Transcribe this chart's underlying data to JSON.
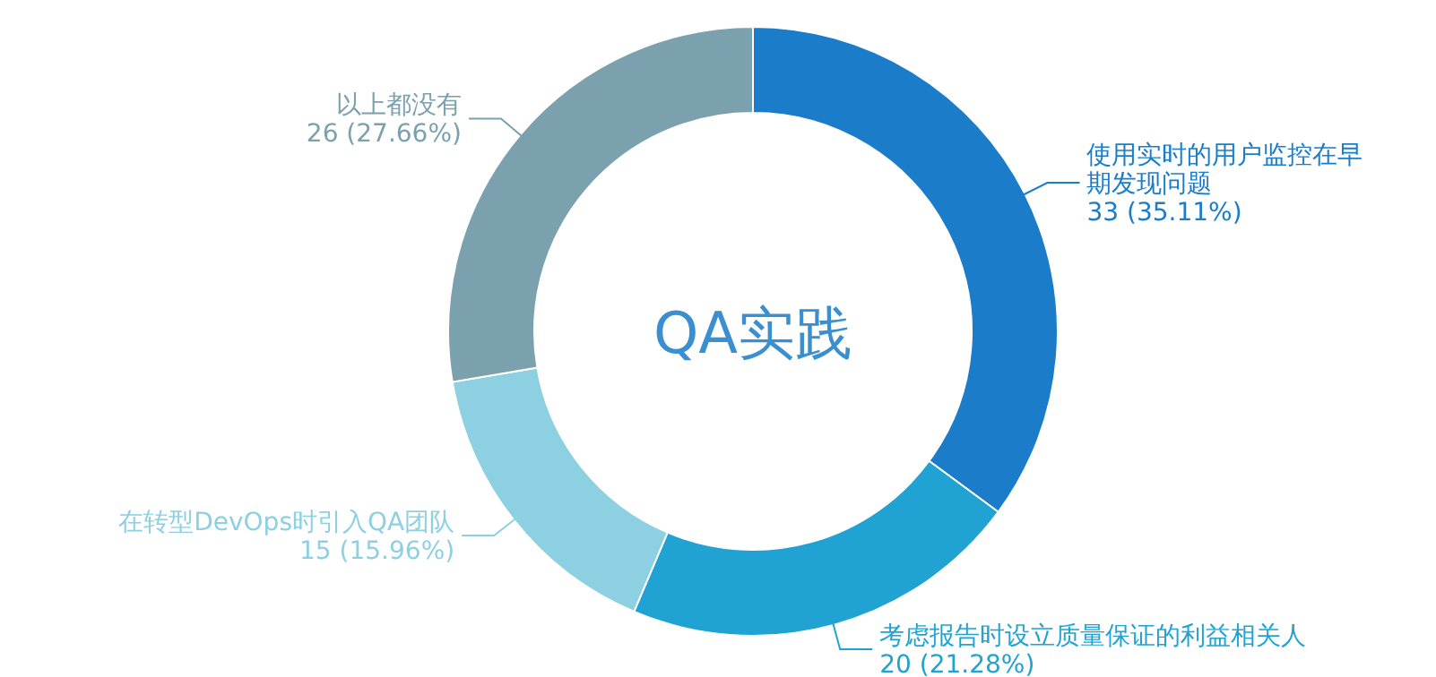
{
  "chart_data": {
    "type": "donut",
    "title": "QA实践",
    "categories": [
      "使用实时的用户监控在早期发现问题",
      "考虑报告时设立质量保证的利益相关人",
      "在转型DevOps时引入QA团队",
      "以上都没有"
    ],
    "values": [
      33,
      20,
      15,
      26
    ],
    "value_labels": [
      "33 (35.11%)",
      "20 (21.28%)",
      "15 (15.96%)",
      "26 (27.66%)"
    ],
    "colors": [
      "#1b7cca",
      "#20a3d2",
      "#8dd0e2",
      "#7ba0ae"
    ]
  }
}
